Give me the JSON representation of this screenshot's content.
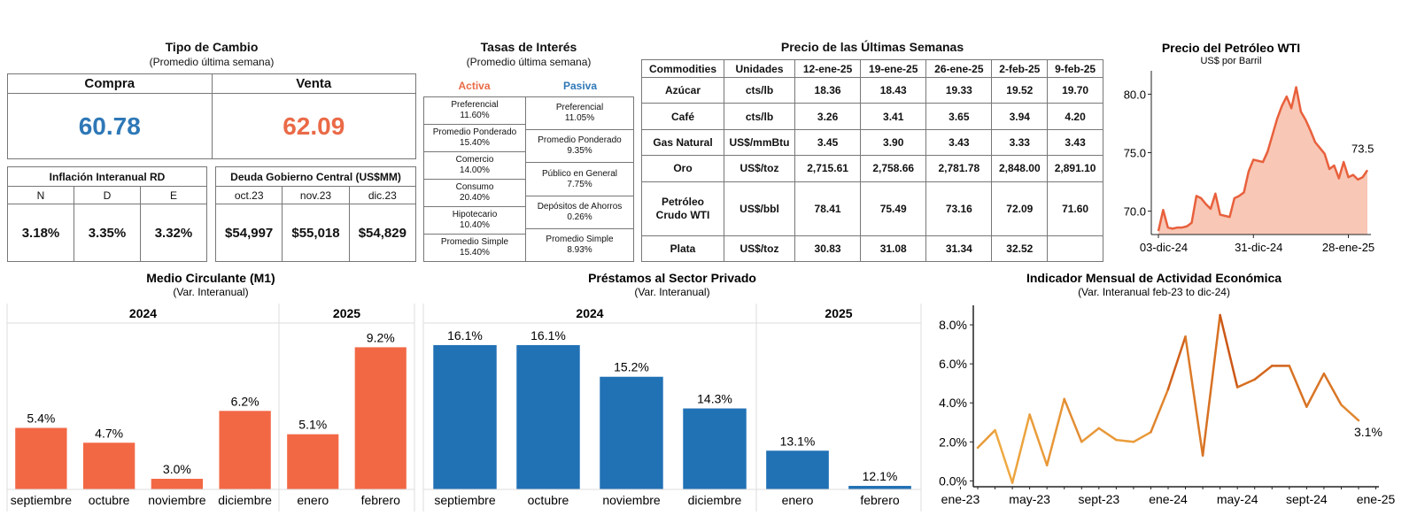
{
  "tipo_cambio": {
    "title": "Tipo de Cambio",
    "subtitle": "(Promedio última semana)",
    "compra_label": "Compra",
    "compra_value": "60.78",
    "venta_label": "Venta",
    "venta_value": "62.09",
    "compra_color": "#2e78b7",
    "venta_color": "#ea6a47"
  },
  "inflacion": {
    "title": "Inflación Interanual RD",
    "months": [
      "N",
      "D",
      "E"
    ],
    "values": [
      "3.18%",
      "3.35%",
      "3.32%"
    ]
  },
  "deuda": {
    "title": "Deuda Gobierno Central (US$MM)",
    "months": [
      "oct.23",
      "nov.23",
      "dic.23"
    ],
    "values": [
      "$54,997",
      "$55,018",
      "$54,829"
    ]
  },
  "tasas": {
    "title": "Tasas de Interés",
    "subtitle": "(Promedio última semana)",
    "activa_label": "Activa",
    "pasiva_label": "Pasiva",
    "activa": [
      {
        "label": "Preferencial",
        "value": "11.60%"
      },
      {
        "label": "Promedio Ponderado",
        "value": "15.40%"
      },
      {
        "label": "Comercio",
        "value": "14.00%"
      },
      {
        "label": "Consumo",
        "value": "20.40%"
      },
      {
        "label": "Hipotecario",
        "value": "10.40%"
      },
      {
        "label": "Promedio Simple",
        "value": "15.40%"
      }
    ],
    "pasiva": [
      {
        "label": "Preferencial",
        "value": "11.05%"
      },
      {
        "label": "Promedio Ponderado",
        "value": "9.35%"
      },
      {
        "label": "Público en General",
        "value": "7.75%"
      },
      {
        "label": "Depósitos de Ahorros",
        "value": "0.26%"
      },
      {
        "label": "Promedio Simple",
        "value": "8.93%"
      }
    ]
  },
  "commodities": {
    "title": "Precio de las Últimas Semanas",
    "headers": [
      "Commodities",
      "Unidades",
      "12-ene-25",
      "19-ene-25",
      "26-ene-25",
      "2-feb-25",
      "9-feb-25"
    ],
    "rows": [
      {
        "name": "Azúcar",
        "unit": "cts/lb",
        "values": [
          "18.36",
          "18.43",
          "19.33",
          "19.52",
          "19.70"
        ]
      },
      {
        "name": "Café",
        "unit": "cts/lb",
        "values": [
          "3.26",
          "3.41",
          "3.65",
          "3.94",
          "4.20"
        ]
      },
      {
        "name": "Gas Natural",
        "unit": "US$/mmBtu",
        "values": [
          "3.45",
          "3.90",
          "3.43",
          "3.33",
          "3.43"
        ]
      },
      {
        "name": "Oro",
        "unit": "US$/toz",
        "values": [
          "2,715.61",
          "2,758.66",
          "2,781.78",
          "2,848.00",
          "2,891.10"
        ]
      },
      {
        "name": "Petróleo Crudo WTI",
        "unit": "US$/bbl",
        "values": [
          "78.41",
          "75.49",
          "73.16",
          "72.09",
          "71.60"
        ]
      },
      {
        "name": "Plata",
        "unit": "US$/toz",
        "values": [
          "30.83",
          "31.08",
          "31.34",
          "32.52",
          ""
        ]
      }
    ]
  },
  "chart_data": [
    {
      "id": "wti",
      "type": "area",
      "title": "Precio del Petróleo WTI",
      "subtitle": "US$ por Barril",
      "x_ticks": [
        "03-dic-24",
        "31-dic-24",
        "28-ene-25"
      ],
      "y_ticks": [
        "70.0",
        "75.0",
        "80.0"
      ],
      "ylim": [
        68,
        82
      ],
      "last_label": "73.5",
      "values": [
        68.3,
        70.1,
        68.6,
        68.5,
        68.6,
        68.6,
        68.7,
        69.0,
        71.3,
        71.1,
        70.6,
        70.2,
        71.5,
        69.7,
        69.6,
        69.5,
        71.1,
        71.3,
        71.6,
        73.4,
        74.4,
        74.3,
        74.2,
        75.1,
        76.5,
        77.9,
        79.0,
        79.8,
        78.8,
        80.6,
        78.5,
        77.8,
        76.9,
        75.9,
        75.4,
        74.9,
        73.6,
        73.9,
        72.8,
        74.2,
        72.9,
        73.1,
        72.7,
        72.9,
        73.5
      ],
      "line_color": "#e8603c",
      "fill_color": "#f8c7b6"
    },
    {
      "id": "m1",
      "type": "bar",
      "title": "Medio Circulante (M1)",
      "subtitle": "(Var. Interanual)",
      "groups": [
        {
          "name": "2024",
          "categories": [
            "septiembre",
            "octubre",
            "noviembre",
            "diciembre"
          ],
          "values": [
            5.4,
            4.7,
            3.0,
            6.2
          ],
          "labels": [
            "5.4%",
            "4.7%",
            "3.0%",
            "6.2%"
          ]
        },
        {
          "name": "2025",
          "categories": [
            "enero",
            "febrero"
          ],
          "values": [
            5.1,
            9.2
          ],
          "labels": [
            "5.1%",
            "9.2%"
          ]
        }
      ],
      "ylim": [
        2.5,
        9.8
      ],
      "color": "#f26845"
    },
    {
      "id": "prestamos",
      "type": "bar",
      "title": "Préstamos al Sector Privado",
      "subtitle": "(Var. Interanual)",
      "groups": [
        {
          "name": "2024",
          "categories": [
            "septiembre",
            "octubre",
            "noviembre",
            "diciembre"
          ],
          "values": [
            16.1,
            16.1,
            15.2,
            14.3
          ],
          "labels": [
            "16.1%",
            "16.1%",
            "15.2%",
            "14.3%"
          ]
        },
        {
          "name": "2025",
          "categories": [
            "enero",
            "febrero"
          ],
          "values": [
            13.1,
            12.1
          ],
          "labels": [
            "13.1%",
            "12.1%"
          ]
        }
      ],
      "ylim": [
        12.0,
        16.4
      ],
      "color": "#2171b5"
    },
    {
      "id": "imae",
      "type": "line",
      "title": "Indicador Mensual de Actividad Económica",
      "subtitle": "(Var. Interanual feb-23 to dic-24)",
      "x_ticks": [
        "ene-23",
        "may-23",
        "sept-23",
        "ene-24",
        "may-24",
        "sept-24",
        "ene-25"
      ],
      "y_ticks": [
        "0.0%",
        "2.0%",
        "4.0%",
        "6.0%",
        "8.0%"
      ],
      "ylim": [
        -0.3,
        9.0
      ],
      "last_label": "3.1%",
      "values": [
        1.7,
        2.6,
        -0.1,
        3.4,
        0.8,
        4.2,
        2.0,
        2.7,
        2.1,
        2.0,
        2.5,
        4.7,
        7.4,
        1.3,
        8.5,
        4.8,
        5.2,
        5.9,
        5.9,
        3.8,
        5.5,
        3.9,
        3.1
      ],
      "color_start": "#f9c04e",
      "color_end": "#c74b0e"
    }
  ]
}
